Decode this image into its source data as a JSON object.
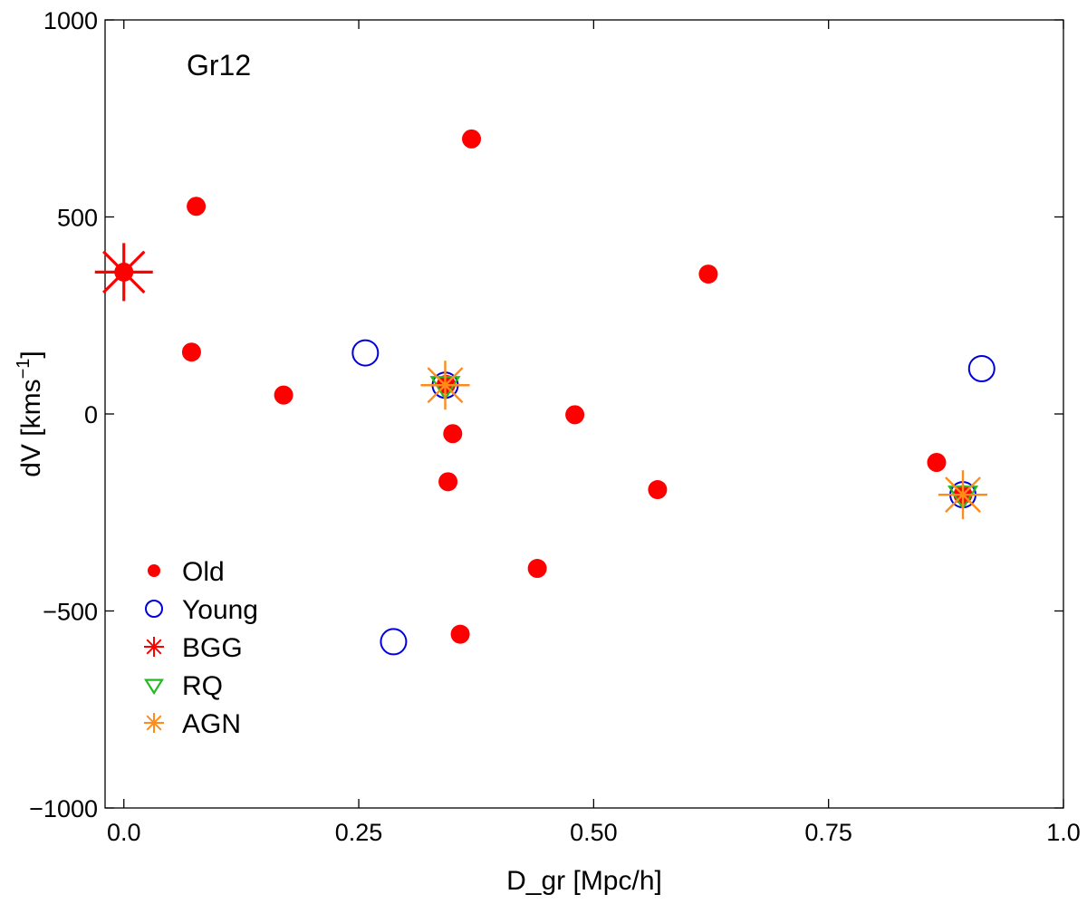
{
  "chart_data": {
    "type": "scatter",
    "annotation": "Gr12",
    "xlabel": "D_gr [Mpc/h]",
    "ylabel_main": "dV [kms",
    "ylabel_sup": "−1",
    "ylabel_close": "]",
    "xlim": [
      -0.02,
      1.0
    ],
    "ylim": [
      -1000,
      1000
    ],
    "xticks": [
      {
        "value": 0.0,
        "label": "0.0"
      },
      {
        "value": 0.25,
        "label": "0.25"
      },
      {
        "value": 0.5,
        "label": "0.50"
      },
      {
        "value": 0.75,
        "label": "0.75"
      },
      {
        "value": 1.0,
        "label": "1.0"
      }
    ],
    "yticks": [
      {
        "value": -1000,
        "label": "−1000"
      },
      {
        "value": -500,
        "label": "−500"
      },
      {
        "value": 0,
        "label": "0"
      },
      {
        "value": 500,
        "label": "500"
      },
      {
        "value": 1000,
        "label": "1000"
      }
    ],
    "legend": {
      "position": "lower-left",
      "entries": [
        {
          "name": "Old",
          "marker": "filled-circle",
          "color": "#ff0000"
        },
        {
          "name": "Young",
          "marker": "open-circle",
          "color": "#0000dd"
        },
        {
          "name": "BGG",
          "marker": "asterisk",
          "color": "#ff0000"
        },
        {
          "name": "RQ",
          "marker": "open-triangle-down",
          "color": "#22bb22"
        },
        {
          "name": "AGN",
          "marker": "asterisk",
          "color": "#ff8c1a"
        }
      ]
    },
    "series": [
      {
        "name": "Old",
        "marker": "filled-circle",
        "color": "#ff0000",
        "points": [
          [
            0.0,
            360
          ],
          [
            0.077,
            527
          ],
          [
            0.072,
            157
          ],
          [
            0.17,
            48
          ],
          [
            0.37,
            698
          ],
          [
            0.343,
            75
          ],
          [
            0.35,
            -50
          ],
          [
            0.345,
            -172
          ],
          [
            0.358,
            -559
          ],
          [
            0.44,
            -392
          ],
          [
            0.48,
            -2
          ],
          [
            0.568,
            -192
          ],
          [
            0.622,
            355
          ],
          [
            0.865,
            -123
          ],
          [
            0.893,
            -205
          ]
        ]
      },
      {
        "name": "Young",
        "marker": "open-circle",
        "color": "#0000dd",
        "points": [
          [
            0.257,
            155
          ],
          [
            0.287,
            -578
          ],
          [
            0.342,
            73
          ],
          [
            0.893,
            -205
          ],
          [
            0.913,
            115
          ]
        ]
      },
      {
        "name": "BGG",
        "marker": "asterisk",
        "color": "#ff0000",
        "points": [
          [
            0.0,
            360
          ]
        ]
      },
      {
        "name": "RQ",
        "marker": "open-triangle-down",
        "color": "#22bb22",
        "points": [
          [
            0.342,
            73
          ],
          [
            0.893,
            -205
          ]
        ]
      },
      {
        "name": "AGN",
        "marker": "asterisk",
        "color": "#ff8c1a",
        "points": [
          [
            0.342,
            73
          ],
          [
            0.893,
            -205
          ]
        ]
      }
    ]
  }
}
